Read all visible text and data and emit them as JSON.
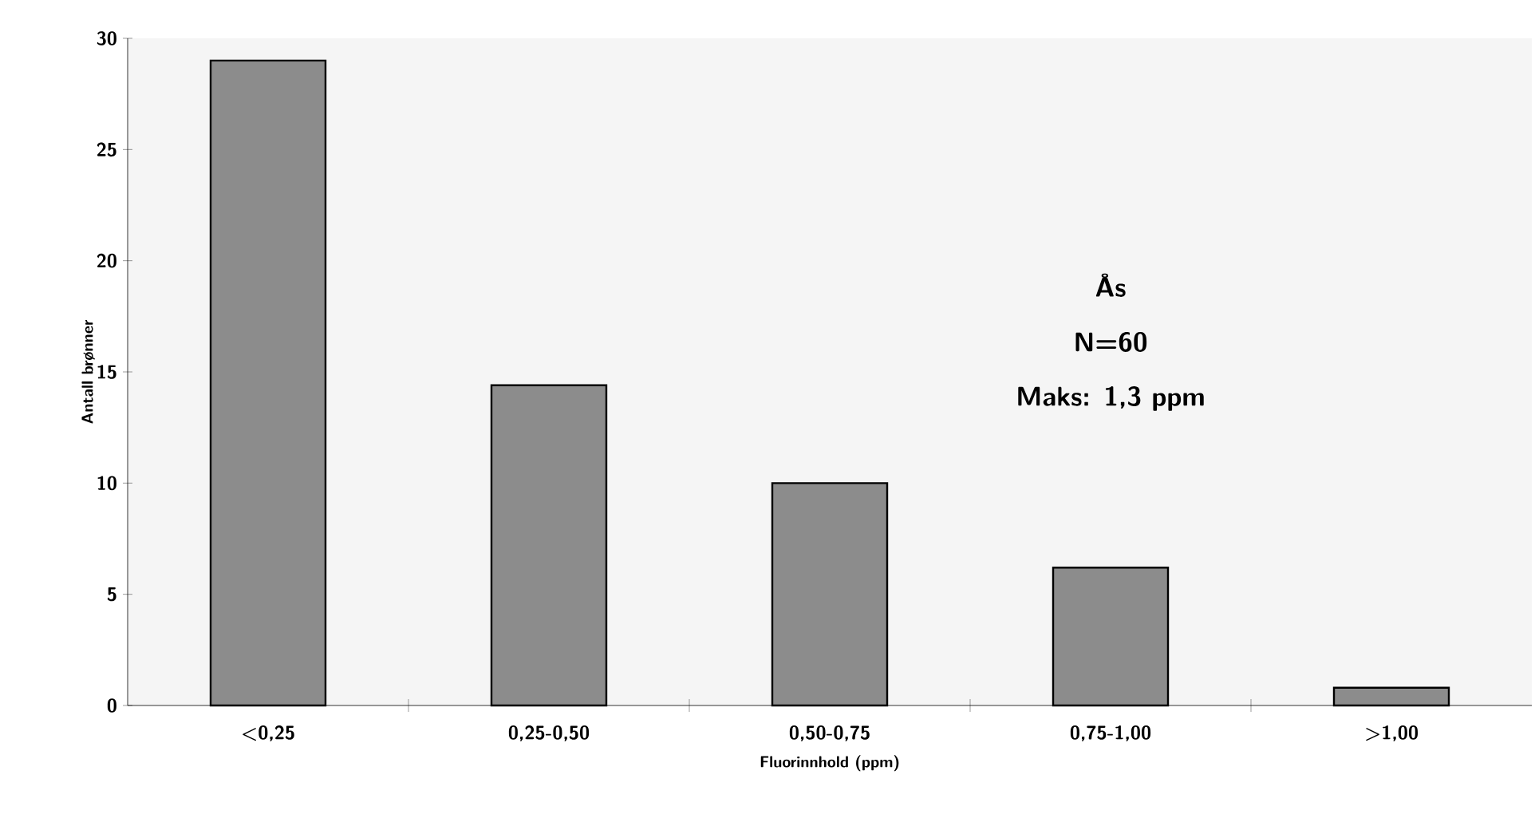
{
  "chart_data": {
    "type": "bar",
    "xlabel": "Fluorinnhold (ppm)",
    "ylabel": "Antall brønner",
    "categories": [
      "<0,25",
      "0,25-0,50",
      "0,50-0,75",
      "0,75-1,00",
      ">1,00"
    ],
    "values": [
      29,
      14.4,
      10,
      6.2,
      0.8
    ],
    "color": "#8c8c8c",
    "ylim": [
      0,
      30
    ],
    "yticks": [
      0,
      5,
      10,
      15,
      20,
      25,
      30
    ],
    "annotations": [
      "Ås",
      "N=60",
      "Maks: 1,3 ppm"
    ]
  }
}
